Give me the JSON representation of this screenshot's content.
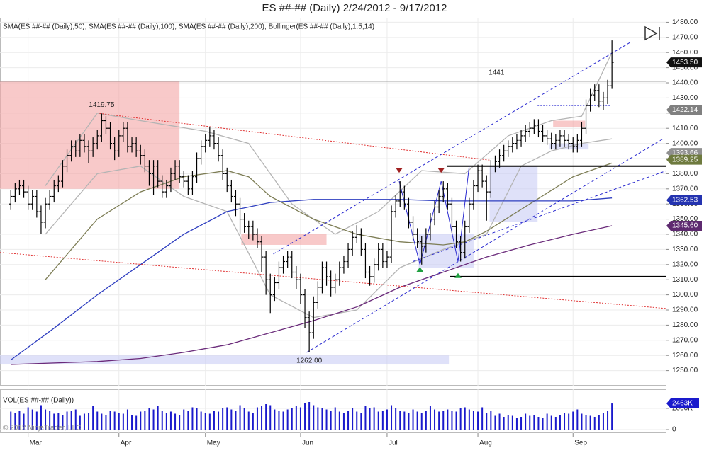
{
  "chart_data": {
    "type": "ohlc",
    "title": "ES ##-## (Daily)  2/24/2012 - 9/17/2012",
    "indicators": "SMA(ES ##-## (Daily),50), SMA(ES ##-## (Daily),100), SMA(ES ##-## (Daily),200), Bollinger(ES ##-## (Daily),1.5,14)",
    "xlim": [
      -2.5,
      151.6
    ],
    "xticks": [
      {
        "value": 4,
        "label": "Mar"
      },
      {
        "value": 25,
        "label": "Apr"
      },
      {
        "value": 45,
        "label": "May"
      },
      {
        "value": 67,
        "label": "Jun"
      },
      {
        "value": 87,
        "label": "Jul"
      },
      {
        "value": 108,
        "label": "Aug"
      },
      {
        "value": 130,
        "label": "Sep"
      }
    ],
    "ylim": [
      1240,
      1483
    ],
    "yticks": [
      {
        "value": 1250,
        "label": "1250.00"
      },
      {
        "value": 1260,
        "label": "1260.00"
      },
      {
        "value": 1270,
        "label": "1270.00"
      },
      {
        "value": 1280,
        "label": "1280.00"
      },
      {
        "value": 1290,
        "label": "1290.00"
      },
      {
        "value": 1300,
        "label": "1300.00"
      },
      {
        "value": 1310,
        "label": "1310.00"
      },
      {
        "value": 1320,
        "label": "1320.00"
      },
      {
        "value": 1330,
        "label": "1330.00"
      },
      {
        "value": 1340,
        "label": "1340.00"
      },
      {
        "value": 1350,
        "label": "1350.00"
      },
      {
        "value": 1360,
        "label": "1360.00"
      },
      {
        "value": 1370,
        "label": "1370.00"
      },
      {
        "value": 1380,
        "label": "1380.00"
      },
      {
        "value": 1390,
        "label": "1390.00"
      },
      {
        "value": 1400,
        "label": "1400.00"
      },
      {
        "value": 1410,
        "label": "1410.00"
      },
      {
        "value": 1420,
        "label": "1420.00"
      },
      {
        "value": 1430,
        "label": "1430.00"
      },
      {
        "value": 1440,
        "label": "1440.00"
      },
      {
        "value": 1450,
        "label": "1450.00"
      },
      {
        "value": 1460,
        "label": "1460.00"
      },
      {
        "value": 1470,
        "label": "1470.00"
      },
      {
        "value": 1480,
        "label": "1480.00"
      }
    ],
    "grid": true,
    "bar_color": "#000000",
    "open": [
      1360,
      1365,
      1370,
      1372,
      1368,
      1360,
      1365,
      1355,
      1348,
      1360,
      1365,
      1372,
      1375,
      1385,
      1392,
      1398,
      1395,
      1402,
      1398,
      1395,
      1400,
      1405,
      1415,
      1410,
      1400,
      1395,
      1405,
      1410,
      1398,
      1400,
      1395,
      1392,
      1385,
      1380,
      1385,
      1375,
      1368,
      1372,
      1380,
      1385,
      1378,
      1375,
      1370,
      1378,
      1390,
      1398,
      1402,
      1405,
      1400,
      1392,
      1380,
      1372,
      1365,
      1360,
      1350,
      1345,
      1345,
      1340,
      1335,
      1325,
      1310,
      1300,
      1308,
      1318,
      1322,
      1325,
      1315,
      1310,
      1300,
      1285,
      1275,
      1295,
      1305,
      1318,
      1312,
      1305,
      1310,
      1318,
      1322,
      1330,
      1338,
      1340,
      1330,
      1315,
      1312,
      1320,
      1330,
      1322,
      1325,
      1355,
      1362,
      1368,
      1360,
      1348,
      1340,
      1335,
      1332,
      1340,
      1350,
      1358,
      1365,
      1370,
      1360,
      1345,
      1335,
      1328,
      1345,
      1360,
      1372,
      1382,
      1375,
      1368,
      1385,
      1388,
      1392,
      1395,
      1398,
      1400,
      1402,
      1405,
      1408,
      1410,
      1412,
      1408,
      1405,
      1403,
      1400,
      1402,
      1405,
      1402,
      1400,
      1398,
      1402,
      1410,
      1425,
      1432,
      1435,
      1428,
      1430,
      1438
    ],
    "high": [
      1369,
      1374,
      1376,
      1376,
      1372,
      1369,
      1369,
      1359,
      1364,
      1369,
      1376,
      1379,
      1389,
      1396,
      1402,
      1402,
      1406,
      1406,
      1402,
      1404,
      1409,
      1419.75,
      1418,
      1414,
      1404,
      1409,
      1414,
      1414,
      1404,
      1404,
      1399,
      1396,
      1389,
      1389,
      1389,
      1379,
      1376,
      1384,
      1389,
      1389,
      1382,
      1379,
      1382,
      1394,
      1402,
      1406,
      1411,
      1409,
      1404,
      1396,
      1384,
      1376,
      1369,
      1364,
      1354,
      1349,
      1349,
      1344,
      1339,
      1329,
      1314,
      1312,
      1322,
      1326,
      1329,
      1329,
      1319,
      1314,
      1304,
      1289,
      1299,
      1309,
      1322,
      1322,
      1316,
      1314,
      1322,
      1326,
      1334,
      1342,
      1346,
      1344,
      1334,
      1319,
      1324,
      1334,
      1334,
      1329,
      1359,
      1366,
      1375,
      1372,
      1364,
      1352,
      1344,
      1339,
      1344,
      1354,
      1362,
      1369,
      1375,
      1374,
      1364,
      1349,
      1339,
      1349,
      1364,
      1376,
      1386,
      1386,
      1379,
      1389,
      1392,
      1396,
      1399,
      1402,
      1404,
      1406,
      1409,
      1412,
      1414,
      1416,
      1416,
      1412,
      1409,
      1407,
      1406,
      1409,
      1409,
      1406,
      1404,
      1406,
      1414,
      1429,
      1436,
      1439,
      1439,
      1434,
      1442,
      1468
    ],
    "low": [
      1356,
      1361,
      1366,
      1364,
      1356,
      1356,
      1351,
      1340,
      1344,
      1356,
      1361,
      1368,
      1371,
      1381,
      1388,
      1391,
      1391,
      1394,
      1387,
      1391,
      1396,
      1401,
      1406,
      1396,
      1389,
      1391,
      1401,
      1394,
      1394,
      1391,
      1386,
      1381,
      1372,
      1366,
      1371,
      1364,
      1364,
      1368,
      1376,
      1374,
      1371,
      1366,
      1366,
      1374,
      1386,
      1394,
      1398,
      1396,
      1388,
      1376,
      1368,
      1361,
      1352,
      1340,
      1341,
      1337,
      1336,
      1331,
      1315,
      1300,
      1288,
      1296,
      1304,
      1314,
      1318,
      1311,
      1304,
      1294,
      1278,
      1262,
      1271,
      1291,
      1301,
      1306,
      1299,
      1301,
      1306,
      1314,
      1318,
      1326,
      1334,
      1326,
      1311,
      1306,
      1308,
      1316,
      1318,
      1318,
      1321,
      1351,
      1358,
      1356,
      1344,
      1336,
      1331,
      1320,
      1328,
      1336,
      1346,
      1354,
      1361,
      1356,
      1341,
      1331,
      1322,
      1324,
      1341,
      1356,
      1368,
      1371,
      1349,
      1364,
      1381,
      1384,
      1388,
      1391,
      1394,
      1396,
      1398,
      1401,
      1404,
      1406,
      1404,
      1401,
      1399,
      1396,
      1396,
      1398,
      1398,
      1396,
      1394,
      1394,
      1398,
      1406,
      1421,
      1428,
      1424,
      1422,
      1426,
      1436
    ],
    "close": [
      1365,
      1370,
      1372,
      1368,
      1360,
      1365,
      1355,
      1348,
      1360,
      1365,
      1372,
      1375,
      1385,
      1392,
      1398,
      1395,
      1402,
      1398,
      1395,
      1400,
      1405,
      1415,
      1410,
      1400,
      1395,
      1405,
      1410,
      1398,
      1400,
      1395,
      1392,
      1385,
      1380,
      1385,
      1375,
      1368,
      1372,
      1380,
      1385,
      1378,
      1375,
      1370,
      1378,
      1390,
      1398,
      1402,
      1405,
      1400,
      1392,
      1380,
      1372,
      1365,
      1360,
      1350,
      1345,
      1345,
      1340,
      1335,
      1325,
      1310,
      1300,
      1308,
      1318,
      1322,
      1325,
      1315,
      1310,
      1300,
      1285,
      1275,
      1295,
      1305,
      1318,
      1312,
      1305,
      1310,
      1318,
      1322,
      1330,
      1338,
      1340,
      1330,
      1315,
      1312,
      1320,
      1330,
      1322,
      1325,
      1355,
      1362,
      1368,
      1360,
      1348,
      1340,
      1335,
      1332,
      1340,
      1350,
      1358,
      1365,
      1370,
      1360,
      1345,
      1335,
      1328,
      1345,
      1360,
      1372,
      1382,
      1375,
      1368,
      1385,
      1388,
      1392,
      1395,
      1398,
      1400,
      1402,
      1405,
      1408,
      1410,
      1412,
      1408,
      1405,
      1403,
      1400,
      1402,
      1405,
      1402,
      1400,
      1398,
      1402,
      1410,
      1425,
      1432,
      1435,
      1428,
      1430,
      1438,
      1453.5
    ],
    "lines": [
      {
        "color": "#b4b4b4",
        "x": [
          8,
          20,
          30,
          45,
          55,
          65,
          75,
          85,
          95,
          105,
          115,
          125,
          132,
          139
        ],
        "values": [
          1372,
          1420,
          1415,
          1408,
          1400,
          1360,
          1340,
          1355,
          1382,
          1380,
          1405,
          1415,
          1418,
          1460
        ]
      },
      {
        "color": "#b4b4b4",
        "x": [
          8,
          20,
          30,
          40,
          50,
          60,
          70,
          80,
          90,
          100,
          110,
          118,
          125,
          132,
          139
        ],
        "values": [
          1340,
          1380,
          1385,
          1365,
          1355,
          1300,
          1285,
          1290,
          1318,
          1330,
          1340,
          1385,
          1395,
          1400,
          1403
        ]
      },
      {
        "color": "#7d7d55",
        "x": [
          8,
          20,
          30,
          40,
          50,
          55,
          60,
          70,
          80,
          90,
          100,
          105,
          110,
          120,
          130,
          139
        ],
        "values": [
          1310,
          1350,
          1368,
          1378,
          1382,
          1378,
          1365,
          1350,
          1340,
          1335,
          1333,
          1335,
          1342,
          1360,
          1378,
          1387
        ]
      },
      {
        "color": "#2f3fc0",
        "x": [
          0,
          10,
          20,
          30,
          40,
          50,
          60,
          70,
          80,
          90,
          100,
          110,
          120,
          130,
          139
        ],
        "values": [
          1257,
          1278,
          1300,
          1320,
          1340,
          1355,
          1361,
          1363,
          1363,
          1363,
          1362,
          1362,
          1362,
          1362,
          1364
        ]
      },
      {
        "color": "#6a2a7a",
        "x": [
          0,
          10,
          20,
          30,
          40,
          50,
          60,
          70,
          80,
          90,
          100,
          110,
          120,
          130,
          139
        ],
        "values": [
          1254,
          1255,
          1256,
          1258,
          1262,
          1267,
          1275,
          1283,
          1292,
          1305,
          1315,
          1325,
          1333,
          1340,
          1345.6
        ]
      }
    ],
    "drawings": {
      "rects": [
        {
          "color": "#f3a5a5",
          "x": [
            -2.5,
            39
          ],
          "y": [
            1441,
            1370
          ]
        },
        {
          "color": "#f3a5a5",
          "x": [
            53.3,
            73
          ],
          "y": [
            1340,
            1333
          ]
        },
        {
          "color": "#f3a5a5",
          "x": [
            125.4,
            132.8
          ],
          "y": [
            1415,
            1411
          ]
        },
        {
          "color": "#c9cdf5",
          "x": [
            -2.5,
            101.3
          ],
          "y": [
            1260,
            1254
          ]
        },
        {
          "color": "#c9cdf5",
          "x": [
            94.3,
            107
          ],
          "y": [
            1340,
            1318
          ]
        },
        {
          "color": "#c9cdf5",
          "x": [
            110.7,
            121.8
          ],
          "y": [
            1385,
            1348
          ]
        },
        {
          "color": "#c9cdf5",
          "x": [
            124.6,
            133.6
          ],
          "y": [
            1400,
            1396
          ]
        }
      ],
      "lines": [
        {
          "color": "#888888",
          "style": "solid",
          "x": [
            -2.5,
            151.6
          ],
          "y": [
            1441,
            1441
          ]
        },
        {
          "color": "#e03030",
          "style": "dotted",
          "x": [
            20.5,
            110.7
          ],
          "y": [
            1419.75,
            1389
          ]
        },
        {
          "color": "#e03030",
          "style": "dotted",
          "x": [
            -2.5,
            151.6
          ],
          "y": [
            1328,
            1291
          ]
        },
        {
          "color": "#2a2ad0",
          "style": "dashed",
          "x": [
            60.7,
            143.4
          ],
          "y": [
            1327,
            1467
          ]
        },
        {
          "color": "#2a2ad0",
          "style": "dashed",
          "x": [
            68.4,
            150.8
          ],
          "y": [
            1262,
            1403
          ]
        },
        {
          "color": "#2a2ad0",
          "style": "dashed",
          "x": [
            93,
            151.6
          ],
          "y": [
            1322,
            1382
          ]
        },
        {
          "color": "#000000",
          "style": "solid",
          "x": [
            100.8,
            151.6
          ],
          "y": [
            1385,
            1385
          ]
        },
        {
          "color": "#000000",
          "style": "solid",
          "x": [
            101.6,
            151.6
          ],
          "y": [
            1312,
            1312
          ]
        },
        {
          "color": "#2a2ad0",
          "style": "dotted",
          "x": [
            121.8,
            138.5
          ],
          "y": [
            1425,
            1425
          ]
        },
        {
          "color": "#2a2ad0",
          "style": "solid",
          "x": [
            89.8,
            94.6,
            99.5,
            103.4,
            106
          ],
          "y": [
            1375,
            1320,
            1375,
            1322,
            1385
          ]
        }
      ],
      "markers": [
        {
          "dir": "down",
          "color": "#a02020",
          "x": 89.8,
          "y": 1382
        },
        {
          "dir": "down",
          "color": "#a02020",
          "x": 99.5,
          "y": 1382
        },
        {
          "dir": "up",
          "color": "#20a040",
          "x": 94.6,
          "y": 1317
        },
        {
          "dir": "up",
          "color": "#20a040",
          "x": 103.4,
          "y": 1313
        }
      ]
    },
    "annotations": [
      {
        "text": "1419.75",
        "x": 21,
        "y": 1419.75,
        "place": "above"
      },
      {
        "text": "1441",
        "x": 112.3,
        "y": 1441,
        "place": "above"
      },
      {
        "text": "1262.00",
        "x": 69,
        "y": 1262,
        "place": "below"
      }
    ],
    "price_tags": [
      {
        "value": 1453.5,
        "label": "1453.50",
        "color": "#111111"
      },
      {
        "value": 1422.14,
        "label": "1422.14",
        "color": "#808080"
      },
      {
        "value": 1393.66,
        "label": "1393.66",
        "color": "#909090"
      },
      {
        "value": 1389.25,
        "label": "1389.25",
        "color": "#6e7a3e"
      },
      {
        "value": 1362.53,
        "label": "1362.53",
        "color": "#2433b0"
      },
      {
        "value": 1345.6,
        "label": "1345.60",
        "color": "#5e2a70"
      }
    ],
    "volume": {
      "title": "VOL(ES ##-## (Daily))",
      "color": "#1a1acc",
      "ylim": [
        0,
        3600
      ],
      "yticks": [
        0,
        {
          "value": 2000,
          "label": "2000K"
        }
      ],
      "values": [
        1700,
        1600,
        1800,
        1500,
        2100,
        1900,
        1700,
        2300,
        1900,
        1800,
        1500,
        1600,
        1400,
        1700,
        1800,
        1900,
        1300,
        1500,
        1600,
        2200,
        1700,
        1500,
        1400,
        1800,
        1700,
        1600,
        1500,
        1900,
        1400,
        1300,
        1700,
        1800,
        2000,
        1900,
        2200,
        1800,
        1600,
        1700,
        1500,
        1400,
        1900,
        1800,
        2100,
        2000,
        1700,
        1600,
        1500,
        1800,
        1700,
        2000,
        2100,
        1900,
        1800,
        2300,
        2000,
        1700,
        1600,
        2100,
        2200,
        2400,
        2300,
        1900,
        1800,
        1700,
        1900,
        2000,
        2200,
        2100,
        2500,
        2600,
        2300,
        2100,
        2000,
        1900,
        1800,
        2100,
        1700,
        1600,
        1800,
        2000,
        1700,
        1600,
        2200,
        2000,
        2100,
        1700,
        1800,
        1900,
        2300,
        2000,
        1800,
        1700,
        1600,
        1900,
        1700,
        1600,
        1800,
        2200,
        1900,
        1700,
        1800,
        1900,
        1800,
        1700,
        2000,
        2100,
        1900,
        1800,
        1700,
        2100,
        1600,
        1800,
        1300,
        1500,
        1200,
        1400,
        1300,
        1100,
        1200,
        1500,
        1300,
        1400,
        1200,
        1100,
        1500,
        1300,
        1200,
        1400,
        1600,
        1500,
        1700,
        1900,
        1500,
        1400,
        1300,
        1200,
        1400,
        1600,
        1800,
        2463
      ],
      "last_label": "2463K"
    },
    "copyright": "© 2012 NinjaTrader, LLC"
  }
}
